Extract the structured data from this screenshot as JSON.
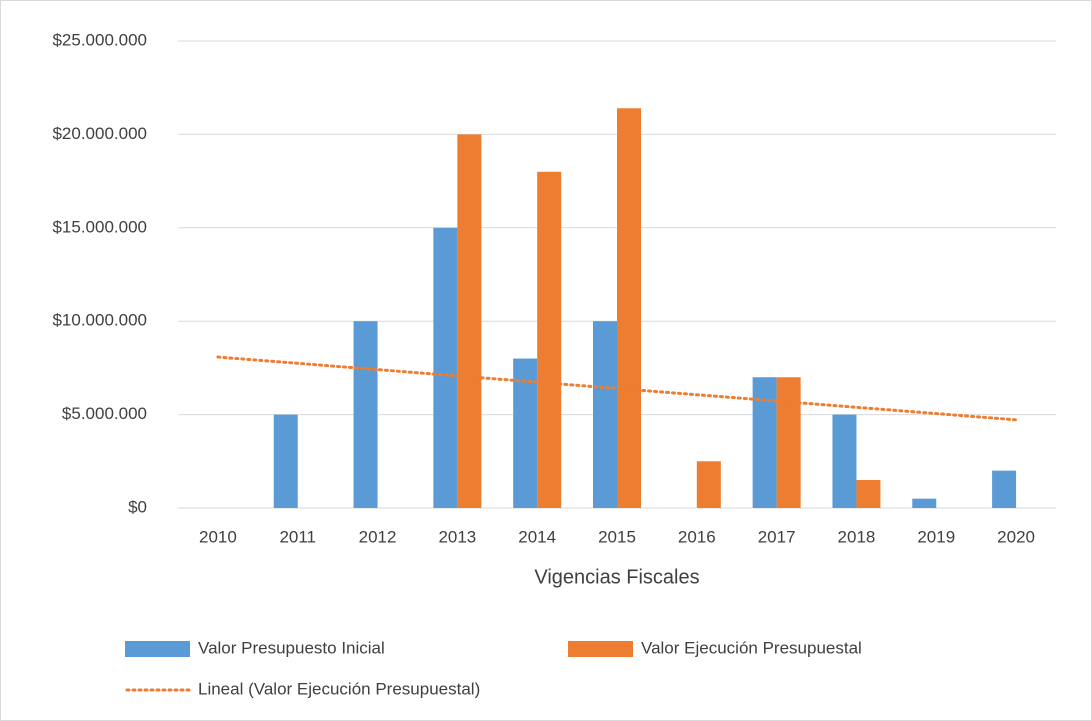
{
  "chart_data": {
    "type": "bar",
    "x_label": "Vigencias Fiscales",
    "categories": [
      "2010",
      "2011",
      "2012",
      "2013",
      "2014",
      "2015",
      "2016",
      "2017",
      "2018",
      "2019",
      "2020"
    ],
    "series": [
      {
        "name": "Valor Presupuesto Inicial",
        "color": "#5b9bd5",
        "values": [
          0,
          5000000,
          10000000,
          15000000,
          8000000,
          10000000,
          0,
          7000000,
          5000000,
          500000,
          2000000
        ]
      },
      {
        "name": "Valor Ejecución Presupuestal",
        "color": "#ed7d31",
        "values": [
          0,
          0,
          0,
          20000000,
          18000000,
          21400000,
          2500000,
          7000000,
          1500000,
          0,
          0
        ]
      }
    ],
    "trendline": {
      "name": "Lineal (Valor Ejecución Presupuestal)",
      "type": "linear",
      "series": 1,
      "color": "#ed7d31"
    },
    "ylim": [
      0,
      25000000
    ],
    "yticks": [
      {
        "value": 0,
        "label": "$0"
      },
      {
        "value": 5000000,
        "label": "$5.000.000"
      },
      {
        "value": 10000000,
        "label": "$10.000.000"
      },
      {
        "value": 15000000,
        "label": "$15.000.000"
      },
      {
        "value": 20000000,
        "label": "$20.000.000"
      },
      {
        "value": 25000000,
        "label": "$25.000.000"
      }
    ],
    "grid": true,
    "legend": "bottom"
  }
}
